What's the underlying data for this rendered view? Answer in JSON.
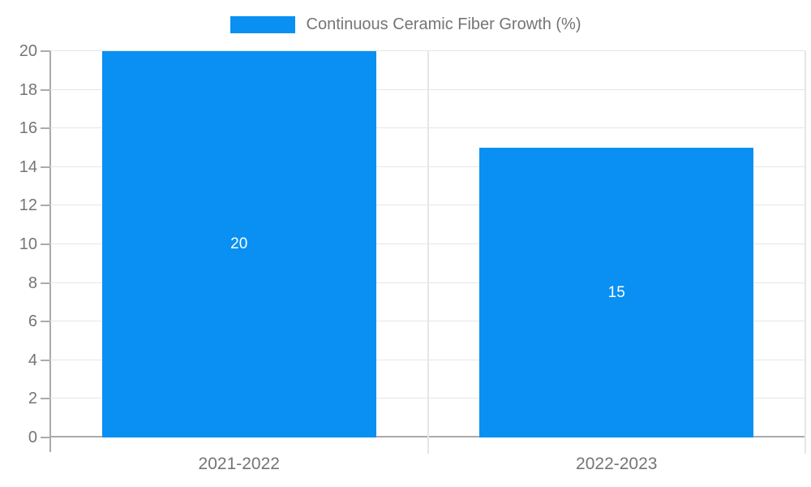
{
  "chart_data": {
    "type": "bar",
    "title": "",
    "series_name": "Continuous Ceramic Fiber Growth (%)",
    "categories": [
      "2021-2022",
      "2022-2023"
    ],
    "values": [
      20,
      15
    ],
    "value_labels": [
      "20",
      "15"
    ],
    "ylim": [
      0,
      20
    ],
    "ytick_step": 2,
    "ytick_labels": [
      "0",
      "2",
      "4",
      "6",
      "8",
      "10",
      "12",
      "14",
      "16",
      "18",
      "20"
    ],
    "grid": true,
    "legend_position": "top-center",
    "colors": {
      "bar": "#0990f2",
      "value_label_text": "#ffffff",
      "axis_line": "#ababab",
      "grid_line": "#e6e6e6",
      "tick_text": "#757575",
      "background": "#ffffff"
    }
  }
}
